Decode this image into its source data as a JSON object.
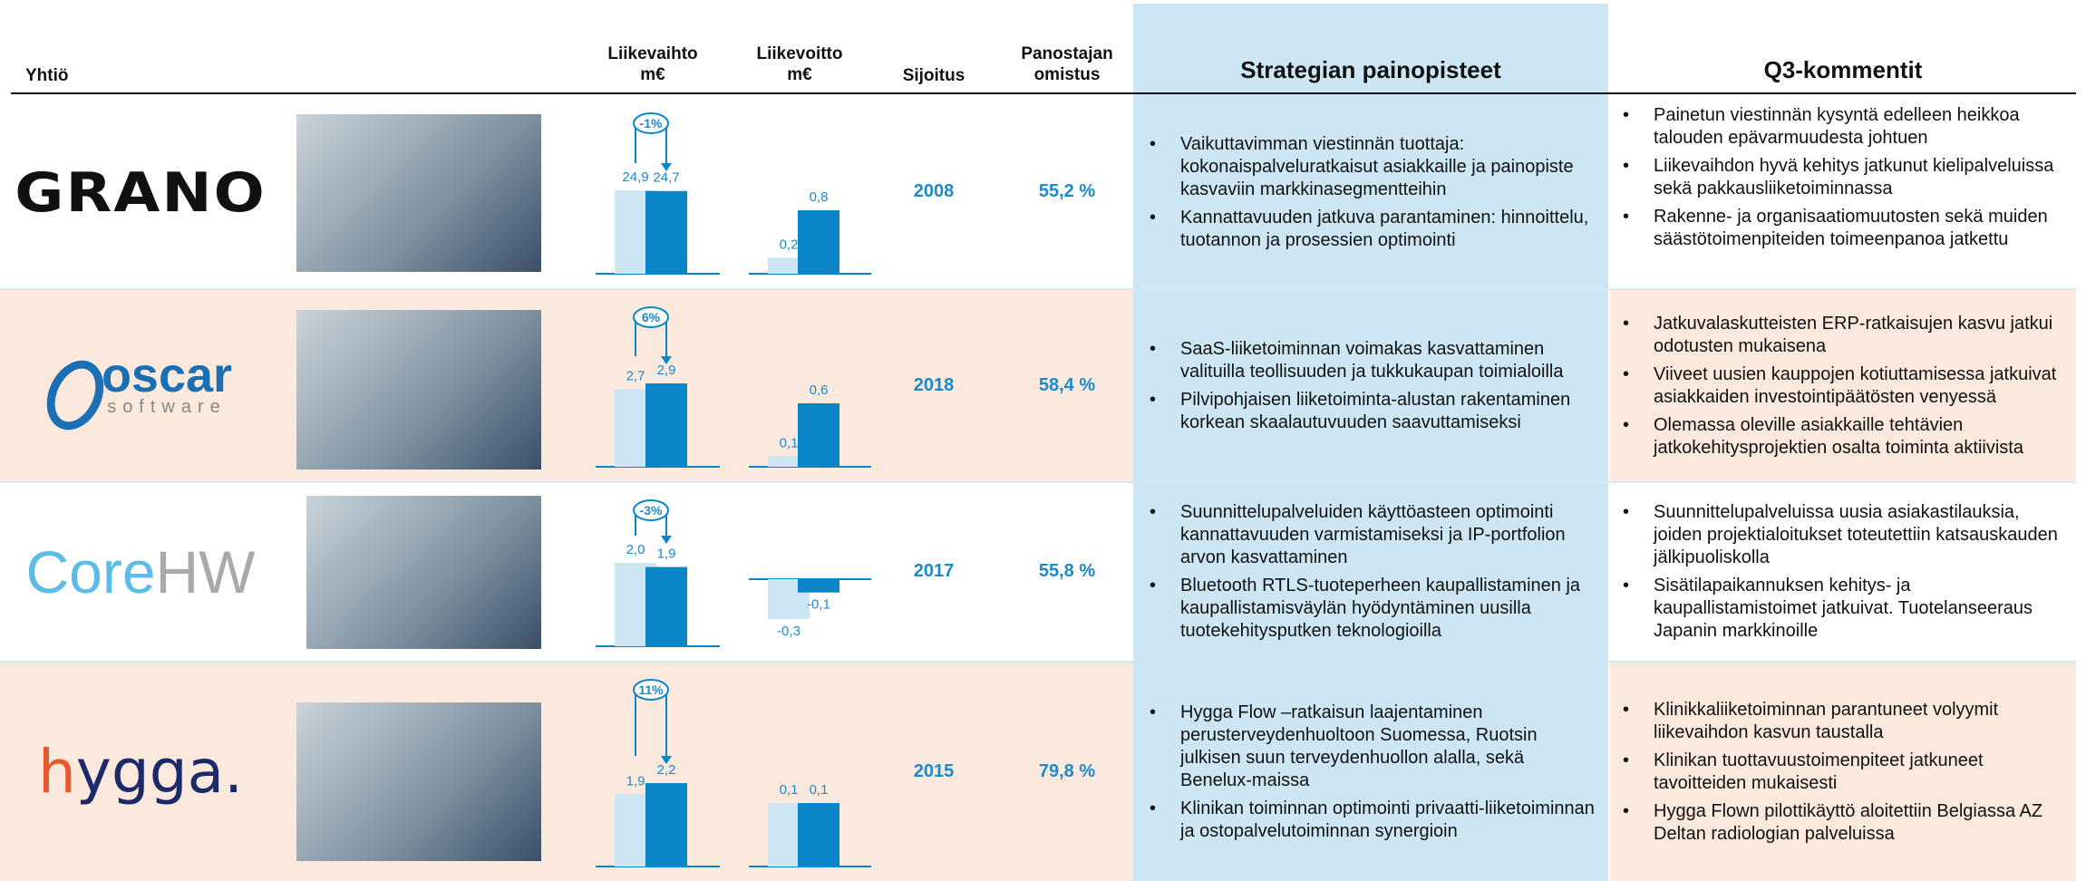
{
  "header": {
    "company": "Yhtiö",
    "revenue": [
      "Liikevaihto",
      "m€"
    ],
    "profit": [
      "Liikevoitto",
      "m€"
    ],
    "year": "Sijoitus",
    "ownership": [
      "Panostajan",
      "omistus"
    ],
    "strategy": "Strategian painopisteet",
    "comments": "Q3-kommentit"
  },
  "rows": [
    {
      "logo": [
        "GRANO"
      ],
      "revenue": {
        "values": [
          24.9,
          24.7
        ],
        "value_labels": [
          "24,9",
          "24,7"
        ],
        "change": "-1%"
      },
      "profit": {
        "values": [
          0.2,
          0.8
        ],
        "value_labels": [
          "0,2",
          "0,8"
        ]
      },
      "year": "2008",
      "ownership": "55,2 %",
      "strategy": [
        "Vaikuttavimman viestinnän tuottaja: kokonaispalveluratkaisut asiakkaille ja painopiste kasvaviin markkinasegmentteihin",
        "Kannattavuuden jatkuva parantaminen: hinnoittelu, tuotannon ja prosessien optimointi"
      ],
      "comments": [
        "Painetun viestinnän kysyntä edelleen heikkoa talouden epävarmuudesta johtuen",
        "Liikevaihdon hyvä kehitys jatkunut kielipalveluissa sekä pakkausliiketoiminnassa",
        "Rakenne- ja organisaatiomuutosten sekä muiden säästötoimenpiteiden toimeenpanoa jatkettu"
      ]
    },
    {
      "logo": [
        "oscar",
        "software"
      ],
      "revenue": {
        "values": [
          2.7,
          2.9
        ],
        "value_labels": [
          "2,7",
          "2,9"
        ],
        "change": "6%"
      },
      "profit": {
        "values": [
          0.1,
          0.6
        ],
        "value_labels": [
          "0,1",
          "0,6"
        ]
      },
      "year": "2018",
      "ownership": "58,4 %",
      "strategy": [
        "SaaS-liiketoiminnan voimakas kasvattaminen valituilla teollisuuden ja tukkukaupan toimialoilla",
        "Pilvipohjaisen liiketoiminta-alustan rakentaminen korkean skaalautuvuuden saavuttamiseksi"
      ],
      "comments": [
        "Jatkuvalaskutteisten ERP-ratkaisujen kasvu jatkui odotusten mukaisena",
        "Viiveet uusien kauppojen kotiuttamisessa jatkuivat asiakkaiden investointipäätösten venyessä",
        "Olemassa oleville asiakkaille tehtävien jatkokehitysprojektien osalta toiminta aktiivista"
      ]
    },
    {
      "logo": [
        "Core",
        "HW"
      ],
      "revenue": {
        "values": [
          2.0,
          1.9
        ],
        "value_labels": [
          "2,0",
          "1,9"
        ],
        "change": "-3%"
      },
      "profit": {
        "values": [
          -0.3,
          -0.1
        ],
        "value_labels": [
          "-0,3",
          "-0,1"
        ]
      },
      "year": "2017",
      "ownership": "55,8 %",
      "strategy": [
        "Suunnittelupalveluiden käyttöasteen optimointi kannattavuuden varmistamiseksi ja IP-portfolion arvon kasvattaminen",
        "Bluetooth RTLS-tuoteperheen kaupallistaminen ja kaupallistamisväylän hyödyntäminen uusilla tuotekehitysputken teknologioilla"
      ],
      "comments": [
        "Suunnittelupalveluissa uusia asiakastilauksia, joiden projektialoitukset toteutettiin katsauskauden jälkipuoliskolla",
        "Sisätilapaikannuksen kehitys- ja kaupallistamistoimet jatkuivat. Tuotelanseeraus Japanin markkinoille"
      ]
    },
    {
      "logo": [
        "h",
        "ygga."
      ],
      "revenue": {
        "values": [
          1.9,
          2.2
        ],
        "value_labels": [
          "1,9",
          "2,2"
        ],
        "change": "11%"
      },
      "profit": {
        "values": [
          0.1,
          0.1
        ],
        "value_labels": [
          "0,1",
          "0,1"
        ]
      },
      "year": "2015",
      "ownership": "79,8 %",
      "strategy": [
        "Hygga Flow –ratkaisun laajentaminen perusterveydenhuoltoon Suomessa, Ruotsin julkisen suun terveydenhuollon alalla, sekä Benelux-maissa",
        "Klinikan toiminnan optimointi privaatti-liiketoiminnan ja ostopalvelutoiminnan synergioin"
      ],
      "comments": [
        "Klinikkaliiketoiminnan parantuneet volyymit liikevaihdon kasvun taustalla",
        "Klinikan tuottavuustoimenpiteet jatkuneet tavoitteiden mukaisesti",
        "Hygga Flown pilottikäyttö aloitettiin Belgiassa AZ  Deltan radiologian palveluissa"
      ]
    }
  ]
}
